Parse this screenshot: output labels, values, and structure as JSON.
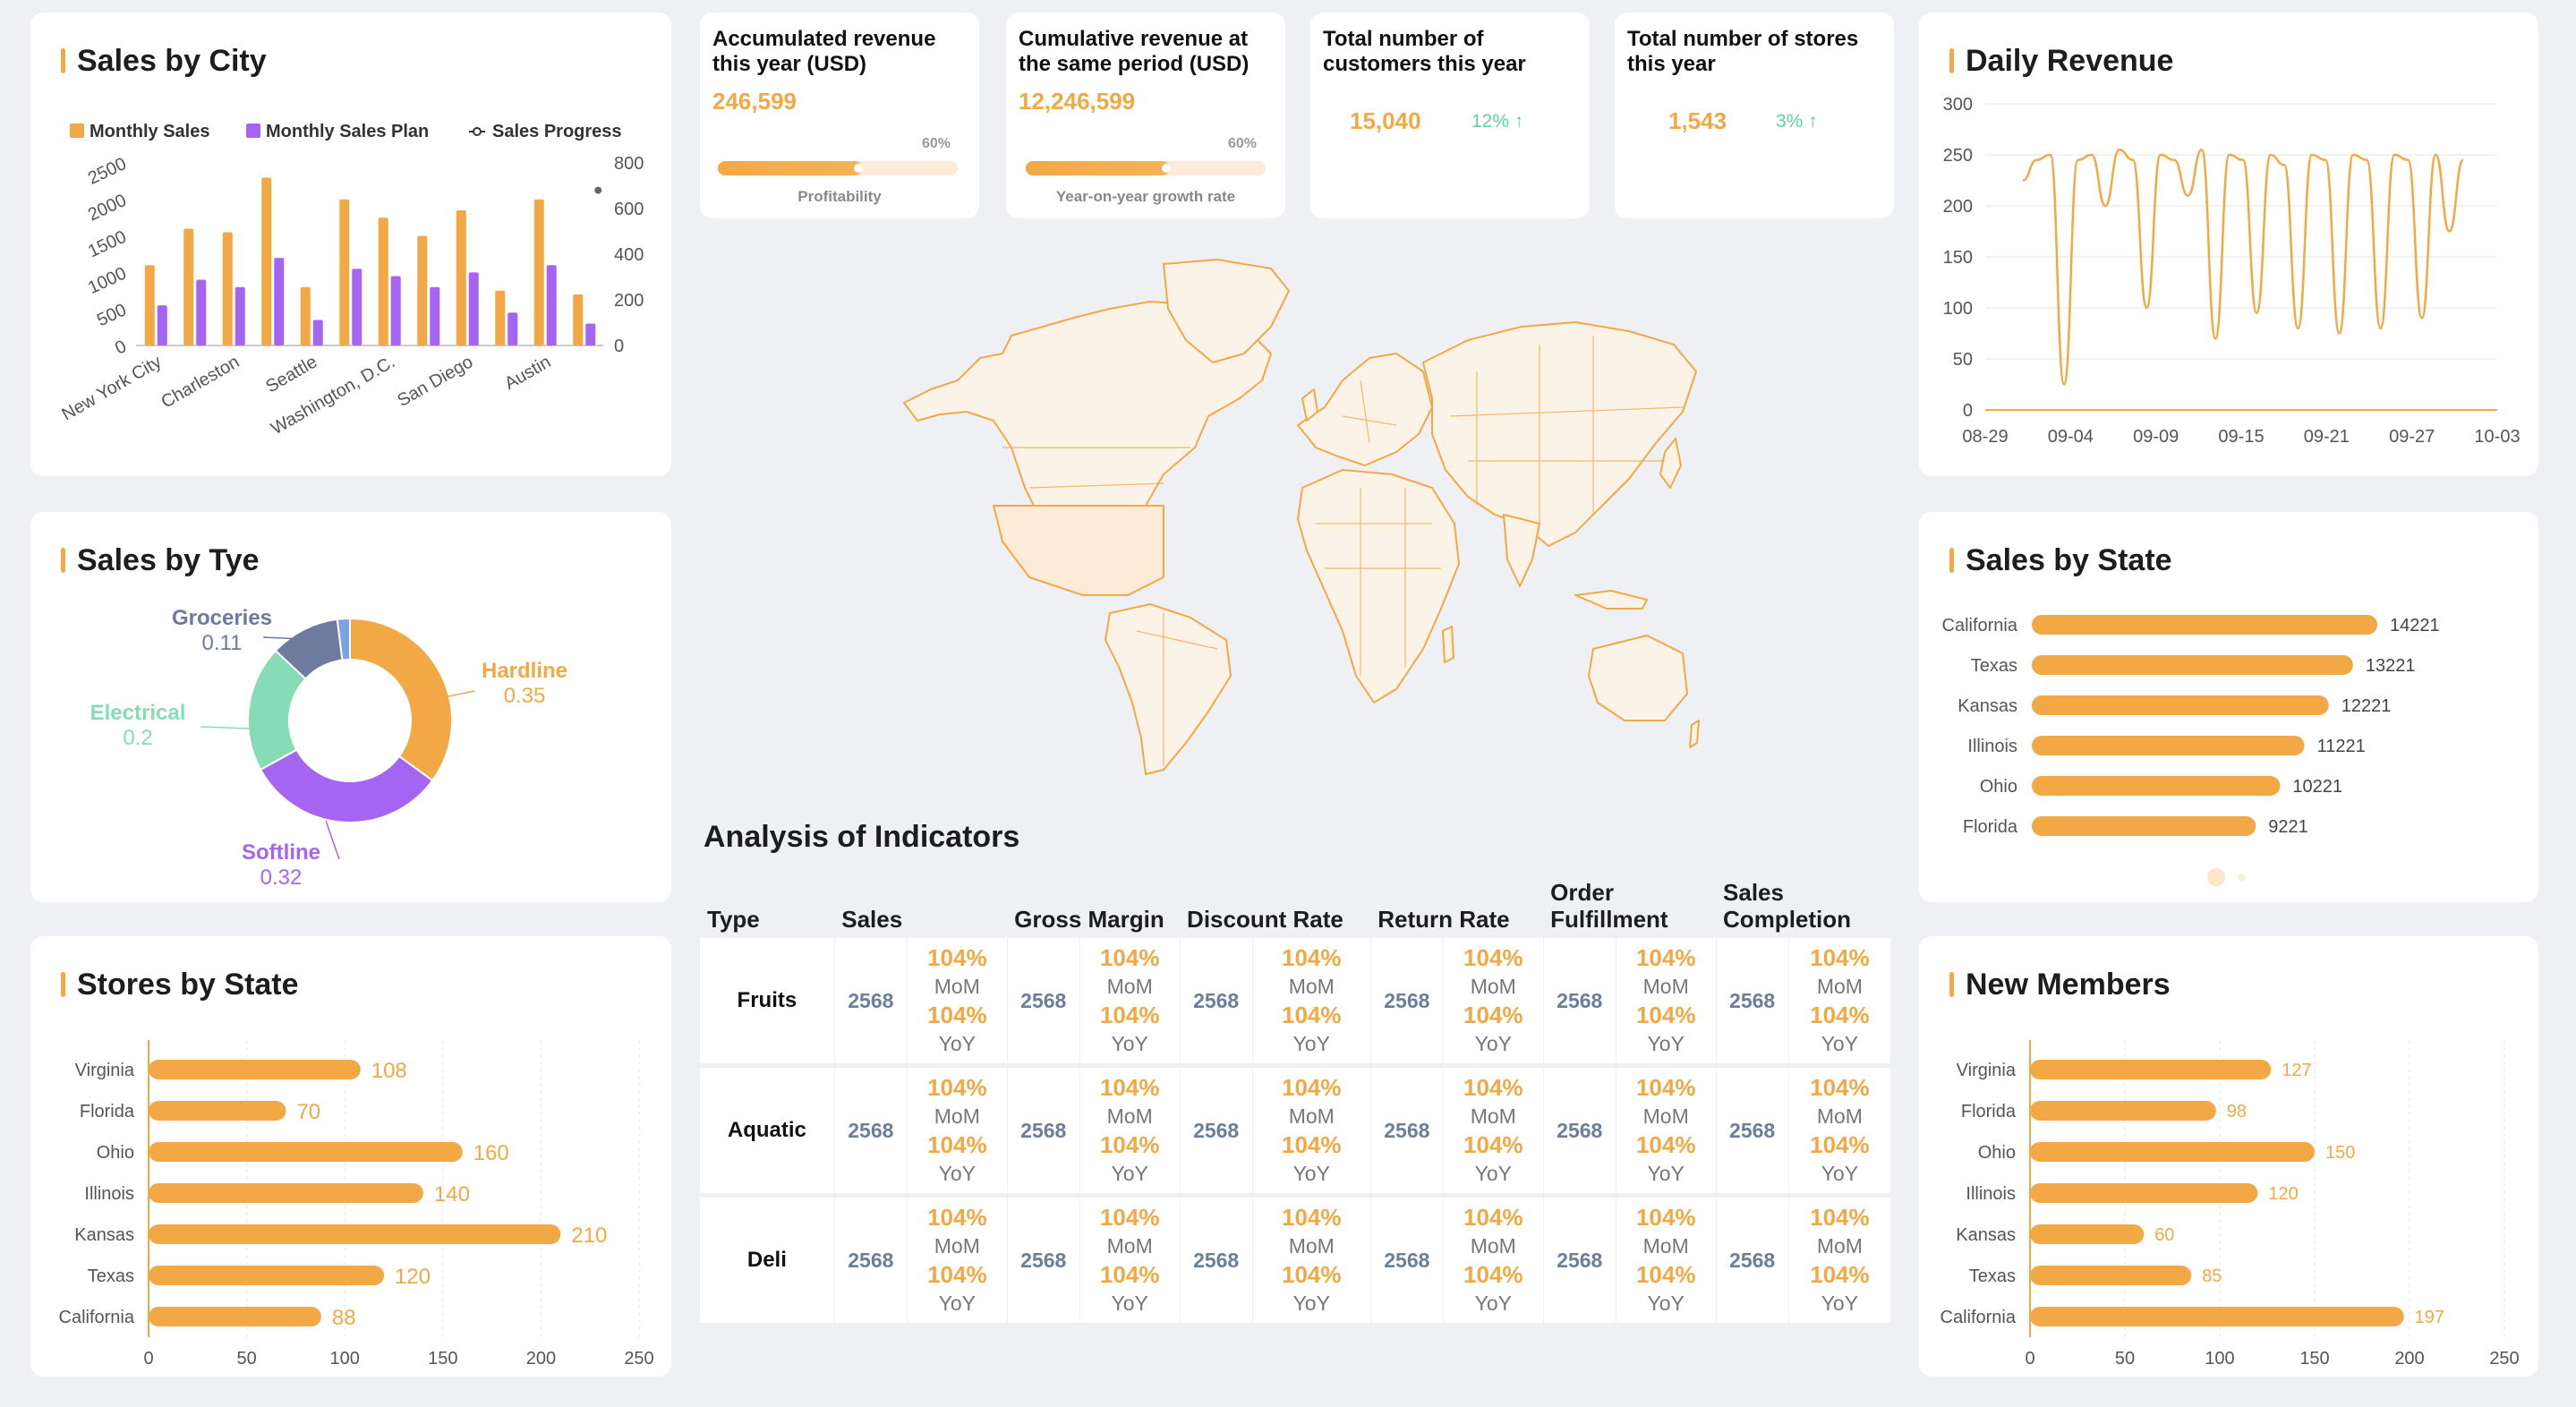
{
  "sales_by_city": {
    "title": "Sales by City",
    "legend": [
      "Monthly Sales",
      "Monthly Sales Plan",
      "Sales Progress"
    ],
    "chart_data": {
      "type": "bar",
      "categories": [
        "New York City",
        "",
        "Charleston",
        "",
        "Seattle",
        "",
        "Washington, D.C.",
        "",
        "San Diego",
        "",
        "Austin",
        ""
      ],
      "tick_labels_shown": [
        "New York City",
        "Charleston",
        "Seattle",
        "Washington, D.C.",
        "San Diego",
        "Austin"
      ],
      "series": [
        {
          "name": "Monthly Sales",
          "values": [
            1100,
            1600,
            1550,
            2300,
            800,
            2000,
            1750,
            1500,
            1850,
            750,
            2000,
            700
          ]
        },
        {
          "name": "Monthly Sales Plan",
          "values": [
            550,
            900,
            800,
            1200,
            350,
            1050,
            950,
            800,
            1000,
            450,
            1100,
            300
          ]
        },
        {
          "name": "Sales Progress",
          "values": [
            null,
            null,
            null,
            null,
            null,
            null,
            null,
            null,
            null,
            null,
            null,
            680
          ]
        }
      ],
      "ylim_left": [
        0,
        2500
      ],
      "yticks_left": [
        "0",
        "500",
        "1000",
        "1500",
        "2000",
        "2500"
      ],
      "ylim_right": [
        0,
        800
      ],
      "yticks_right": [
        "0",
        "200",
        "400",
        "600",
        "800"
      ],
      "colors": {
        "Monthly Sales": "#f2a945",
        "Monthly Sales Plan": "#a565f2"
      }
    }
  },
  "sales_by_type": {
    "title": "Sales by Tye",
    "chart_data": {
      "type": "pie",
      "labels": [
        "Hardline",
        "Softline",
        "Electrical",
        "Groceries"
      ],
      "values": [
        0.35,
        0.32,
        0.2,
        0.11
      ],
      "value_labels": [
        "0.35",
        "0.32",
        "0.2",
        "0.11"
      ],
      "colors": [
        "#f2a945",
        "#a565f2",
        "#86dcb6",
        "#6e7a9e"
      ]
    }
  },
  "stores_by_state": {
    "title": "Stores by State",
    "chart_data": {
      "type": "bar",
      "orientation": "horizontal",
      "categories": [
        "Virginia",
        "Florida",
        "Ohio",
        "Illinois",
        "Kansas",
        "Texas",
        "California"
      ],
      "values": [
        108,
        70,
        160,
        140,
        210,
        120,
        88
      ],
      "xlim": [
        0,
        250
      ],
      "xticks": [
        "0",
        "50",
        "100",
        "150",
        "200",
        "250"
      ]
    }
  },
  "kpis": [
    {
      "title": "Accumulated revenue this year (USD)",
      "value": "246,599",
      "percent": "60%",
      "progress": 0.6,
      "bar_label": "Profitability"
    },
    {
      "title": "Cumulative revenue at the same period (USD)",
      "value": "12,246,599",
      "percent": "60%",
      "progress": 0.6,
      "bar_label": "Year-on-year growth rate"
    },
    {
      "title": "Total number of customers this year",
      "value": "15,040",
      "growth": "12% ↑"
    },
    {
      "title": "Total number of stores this year",
      "value": "1,543",
      "growth": "3% ↑"
    }
  ],
  "indicators": {
    "title": "Analysis of Indicators",
    "headers": [
      "Type",
      "Sales",
      "Gross Margin",
      "Discount Rate",
      "Return Rate",
      "Order Fulfillment",
      "Sales Completion"
    ],
    "mom_label": "MoM",
    "yoy_label": "YoY",
    "rows": [
      {
        "type": "Fruits",
        "cells": [
          {
            "value": "2568",
            "mom": "104%",
            "yoy": "104%"
          },
          {
            "value": "2568",
            "mom": "104%",
            "yoy": "104%"
          },
          {
            "value": "2568",
            "mom": "104%",
            "yoy": "104%"
          },
          {
            "value": "2568",
            "mom": "104%",
            "yoy": "104%"
          },
          {
            "value": "2568",
            "mom": "104%",
            "yoy": "104%"
          },
          {
            "value": "2568",
            "mom": "104%",
            "yoy": "104%"
          }
        ]
      },
      {
        "type": "Aquatic",
        "cells": [
          {
            "value": "2568",
            "mom": "104%",
            "yoy": "104%"
          },
          {
            "value": "2568",
            "mom": "104%",
            "yoy": "104%"
          },
          {
            "value": "2568",
            "mom": "104%",
            "yoy": "104%"
          },
          {
            "value": "2568",
            "mom": "104%",
            "yoy": "104%"
          },
          {
            "value": "2568",
            "mom": "104%",
            "yoy": "104%"
          },
          {
            "value": "2568",
            "mom": "104%",
            "yoy": "104%"
          }
        ]
      },
      {
        "type": "Deli",
        "cells": [
          {
            "value": "2568",
            "mom": "104%",
            "yoy": "104%"
          },
          {
            "value": "2568",
            "mom": "104%",
            "yoy": "104%"
          },
          {
            "value": "2568",
            "mom": "104%",
            "yoy": "104%"
          },
          {
            "value": "2568",
            "mom": "104%",
            "yoy": "104%"
          },
          {
            "value": "2568",
            "mom": "104%",
            "yoy": "104%"
          },
          {
            "value": "2568",
            "mom": "104%",
            "yoy": "104%"
          }
        ]
      }
    ]
  },
  "daily_revenue": {
    "title": "Daily Revenue",
    "chart_data": {
      "type": "line",
      "x": [
        "08-29",
        "08-30",
        "08-31",
        "09-01",
        "09-02",
        "09-03",
        "09-04",
        "09-05",
        "09-06",
        "09-07",
        "09-08",
        "09-09",
        "09-10",
        "09-11",
        "09-12",
        "09-13",
        "09-14",
        "09-15",
        "09-16",
        "09-17",
        "09-18",
        "09-19",
        "09-20",
        "09-21",
        "09-22",
        "09-23",
        "09-24",
        "09-25",
        "09-26",
        "09-27",
        "09-28",
        "09-29",
        "09-30"
      ],
      "values": [
        225,
        245,
        250,
        25,
        245,
        250,
        200,
        255,
        245,
        100,
        250,
        245,
        210,
        255,
        70,
        250,
        245,
        95,
        250,
        240,
        80,
        250,
        245,
        75,
        250,
        245,
        80,
        250,
        245,
        90,
        250,
        175,
        245
      ],
      "xticks": [
        "08-29",
        "09-04",
        "09-09",
        "09-15",
        "09-21",
        "09-27",
        "10-03"
      ],
      "ylim": [
        0,
        300
      ],
      "yticks": [
        "0",
        "50",
        "100",
        "150",
        "200",
        "250",
        "300"
      ]
    }
  },
  "sales_by_state": {
    "title": "Sales by State",
    "chart_data": {
      "type": "bar",
      "orientation": "horizontal",
      "categories": [
        "California",
        "Texas",
        "Kansas",
        "Illinois",
        "Ohio",
        "Florida"
      ],
      "values": [
        14221,
        13221,
        12221,
        11221,
        10221,
        9221
      ],
      "value_labels": [
        "14221",
        "13221",
        "12221",
        "11221",
        "10221",
        "9221"
      ]
    }
  },
  "new_members": {
    "title": "New Members",
    "chart_data": {
      "type": "bar",
      "orientation": "horizontal",
      "categories": [
        "Virginia",
        "Florida",
        "Ohio",
        "Illinois",
        "Kansas",
        "Texas",
        "California"
      ],
      "values": [
        127,
        98,
        150,
        120,
        60,
        85,
        197
      ],
      "xlim": [
        0,
        250
      ],
      "xticks": [
        "0",
        "50",
        "100",
        "150",
        "200",
        "250"
      ]
    }
  },
  "colors": {
    "accent": "#f2a945",
    "purple": "#a565f2",
    "green": "#5fd3a0",
    "slate": "#6a7f99"
  }
}
